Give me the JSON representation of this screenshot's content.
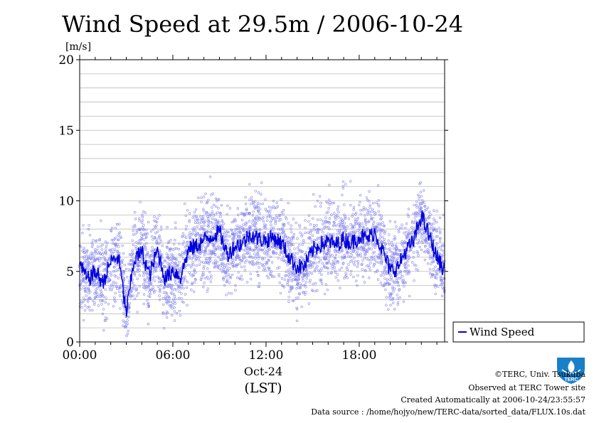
{
  "chart_data": {
    "type": "scatter",
    "title": "Wind Speed at 29.5m / 2006-10-24",
    "ylabel": "[m/s]",
    "xlabel": "(LST)",
    "x_date_label": "Oct-24",
    "ylim": [
      0,
      20
    ],
    "yticks": [
      "0",
      "5",
      "10",
      "15",
      "20"
    ],
    "xlim": [
      "00:00",
      "23:30"
    ],
    "xticks": [
      "00:00",
      "06:00",
      "12:00",
      "18:00"
    ],
    "grid": true,
    "legend": {
      "position": "bottom-right-outside",
      "entries": [
        "Wind Speed"
      ]
    },
    "colors": {
      "scatter": "#8888ee",
      "line": "#0000dd"
    },
    "series": [
      {
        "name": "Wind Speed",
        "kind": "line",
        "x_hours": [
          0,
          0.5,
          1,
          1.5,
          2,
          2.5,
          3,
          3.5,
          4,
          4.5,
          5,
          5.5,
          6,
          6.5,
          7,
          7.5,
          8,
          8.5,
          9,
          9.5,
          10,
          10.5,
          11,
          11.5,
          12,
          12.5,
          13,
          13.5,
          14,
          14.5,
          15,
          15.5,
          16,
          16.5,
          17,
          17.5,
          18,
          18.5,
          19,
          19.5,
          20,
          20.5,
          21,
          21.5,
          22,
          22.5,
          23,
          23.5
        ],
        "values": [
          5.5,
          4.4,
          5.0,
          4.2,
          5.7,
          6.0,
          2.0,
          5.8,
          6.4,
          4.7,
          6.5,
          4.5,
          5.1,
          4.6,
          6.5,
          6.8,
          7.2,
          7.5,
          7.8,
          6.2,
          6.8,
          7.0,
          7.7,
          7.3,
          7.2,
          7.4,
          7.0,
          6.0,
          5.3,
          5.4,
          6.5,
          6.9,
          7.1,
          6.9,
          7.3,
          7.0,
          7.5,
          7.3,
          7.8,
          6.5,
          5.0,
          5.3,
          6.5,
          7.1,
          9.0,
          7.5,
          6.0,
          5.0
        ]
      }
    ]
  },
  "legend": {
    "label": "Wind Speed"
  },
  "credits": {
    "copyright": "©TERC, Univ. Tsukuba",
    "observed": "Observed at TERC Tower site",
    "created": "Created Automatically at 2006-10-24/23:55:57",
    "source": "Data source : /home/hojyo/new/TERC-data/sorted_data/FLUX.10s.dat"
  },
  "logo": {
    "text": "TERC"
  }
}
